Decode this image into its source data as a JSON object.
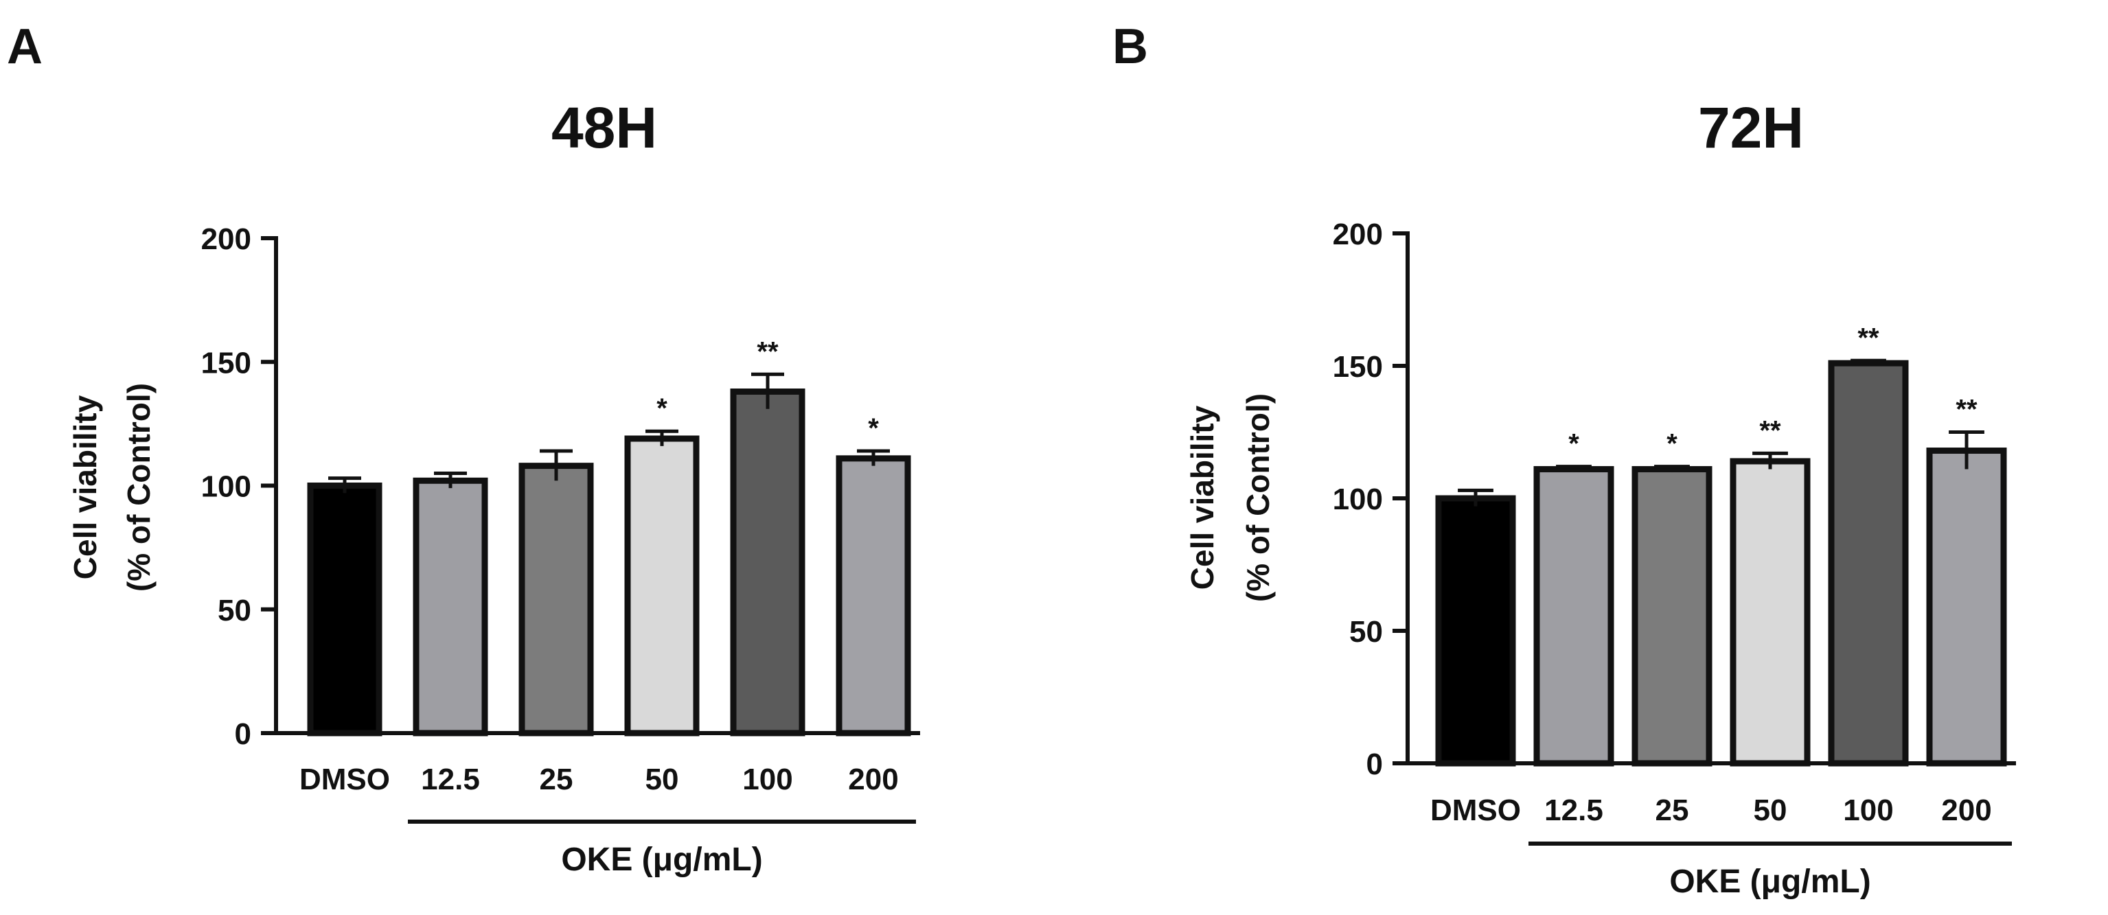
{
  "chart_data": [
    {
      "type": "bar",
      "panel": "A",
      "title": "48H",
      "ylabel_line1": "Cell viability",
      "ylabel_line2": "(% of Control)",
      "ylim": [
        0,
        200
      ],
      "yticks": [
        0,
        50,
        100,
        150,
        200
      ],
      "categories": [
        "DMSO",
        "12.5",
        "25",
        "50",
        "100",
        "200"
      ],
      "values": [
        100,
        102,
        108,
        119,
        138,
        111
      ],
      "errors": [
        3,
        3,
        6,
        3,
        7,
        3
      ],
      "significance": [
        "",
        "",
        "",
        "*",
        "**",
        "*"
      ],
      "colors": [
        "#000000",
        "#9e9ea3",
        "#7c7c7c",
        "#d9d9d9",
        "#5b5b5b",
        "#a1a1a6"
      ],
      "group_label": "OKE (μg/mL)"
    },
    {
      "type": "bar",
      "panel": "B",
      "title": "72H",
      "ylabel_line1": "Cell viability",
      "ylabel_line2": "(% of Control)",
      "ylim": [
        0,
        200
      ],
      "yticks": [
        0,
        50,
        100,
        150,
        200
      ],
      "categories": [
        "DMSO",
        "12.5",
        "25",
        "50",
        "100",
        "200"
      ],
      "values": [
        100,
        111,
        111,
        114,
        151,
        118
      ],
      "errors": [
        3,
        1,
        1,
        3,
        1,
        7
      ],
      "significance": [
        "",
        "*",
        "*",
        "**",
        "**",
        "**"
      ],
      "colors": [
        "#000000",
        "#9e9ea3",
        "#7c7c7c",
        "#d9d9d9",
        "#5b5b5b",
        "#a1a1a6"
      ],
      "group_label": "OKE (μg/mL)"
    }
  ]
}
